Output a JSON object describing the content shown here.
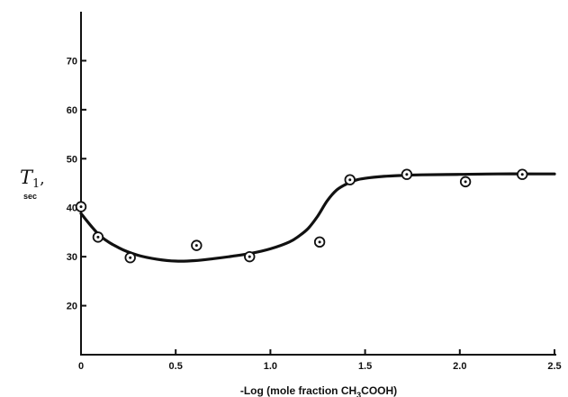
{
  "chart_data": {
    "type": "scatter",
    "title": "",
    "xlabel_parts": [
      "-Log (mole fraction CH",
      "3",
      "COOH)"
    ],
    "ylabel_symbol": "T",
    "ylabel_subscript": "1",
    "ylabel_suffix": ",",
    "ylabel_unit": "sec",
    "xlim": [
      0,
      2.5
    ],
    "ylim": [
      10,
      80
    ],
    "xticks": [
      0,
      0.5,
      1.0,
      1.5,
      2.0,
      2.5
    ],
    "xtick_labels": [
      "0",
      "0.5",
      "1.0",
      "1.5",
      "2.0",
      "2.5"
    ],
    "yticks": [
      20,
      30,
      40,
      50,
      60,
      70
    ],
    "ytick_labels": [
      "20",
      "30",
      "40",
      "50",
      "60",
      "70"
    ],
    "grid": false,
    "series": [
      {
        "type": "scatter",
        "marker": "dotted-circle",
        "x": [
          0.0,
          0.09,
          0.26,
          0.61,
          0.89,
          1.26,
          1.42,
          1.72,
          2.03,
          2.33
        ],
        "y": [
          40.2,
          34.0,
          29.8,
          32.3,
          30.0,
          33.0,
          45.7,
          46.8,
          45.3,
          46.8
        ]
      },
      {
        "type": "line",
        "style": "smooth-fit",
        "x": [
          0.0,
          0.1,
          0.2,
          0.3,
          0.4,
          0.5,
          0.6,
          0.7,
          0.8,
          0.9,
          1.0,
          1.1,
          1.15,
          1.2,
          1.25,
          1.3,
          1.35,
          1.4,
          1.45,
          1.5,
          1.6,
          1.7,
          1.8,
          2.0,
          2.2,
          2.4,
          2.5
        ],
        "y": [
          38.8,
          34.3,
          31.8,
          30.3,
          29.5,
          29.1,
          29.2,
          29.6,
          30.1,
          30.7,
          31.6,
          33.0,
          34.2,
          35.8,
          38.3,
          41.4,
          43.6,
          44.8,
          45.6,
          46.0,
          46.4,
          46.6,
          46.7,
          46.8,
          46.9,
          46.9,
          46.9
        ]
      }
    ]
  },
  "colors": {
    "ink": "#111111",
    "background": "#ffffff"
  }
}
